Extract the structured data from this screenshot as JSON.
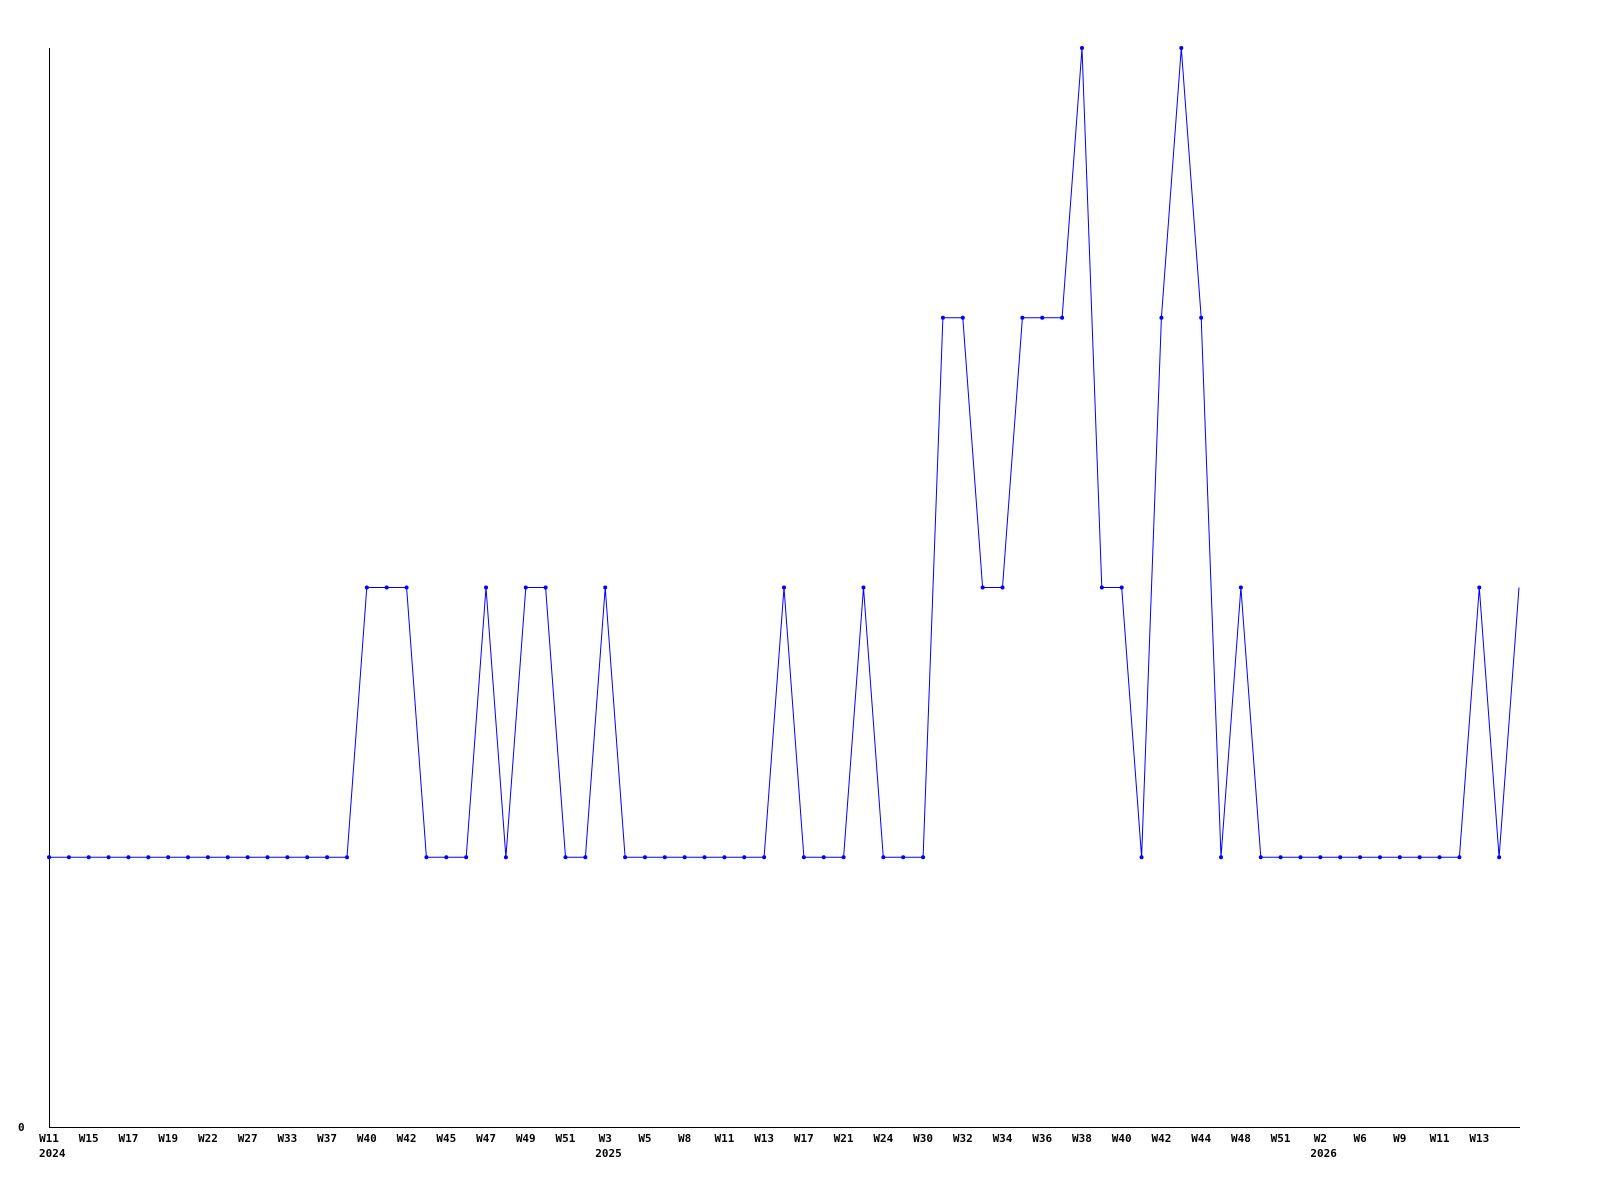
{
  "chart_data": {
    "type": "line",
    "title": "",
    "xlabel": "",
    "ylabel": "",
    "ylim": [
      0,
      4
    ],
    "y_tick_labels": [
      "0"
    ],
    "grid": false,
    "line_color": "#0000ff",
    "values": [
      1,
      1,
      1,
      1,
      1,
      1,
      1,
      1,
      1,
      1,
      1,
      1,
      1,
      1,
      1,
      1,
      2,
      2,
      2,
      1,
      1,
      1,
      2,
      1,
      2,
      2,
      1,
      1,
      2,
      1,
      1,
      1,
      1,
      1,
      1,
      1,
      1,
      2,
      1,
      1,
      1,
      2,
      1,
      1,
      1,
      3,
      3,
      2,
      2,
      3,
      3,
      3,
      4,
      2,
      2,
      1,
      3,
      4,
      3,
      1,
      2,
      1,
      1,
      1,
      1,
      1,
      1,
      1,
      1,
      1,
      1,
      1,
      2,
      1,
      2
    ],
    "x_tick_labels": [
      "W11",
      "W15",
      "W17",
      "W19",
      "W22",
      "W27",
      "W33",
      "W37",
      "W40",
      "W42",
      "W45",
      "W47",
      "W49",
      "W51",
      "W3",
      "W5",
      "W8",
      "W11",
      "W13",
      "W17",
      "W21",
      "W24",
      "W30",
      "W32",
      "W34",
      "W36",
      "W38",
      "W40",
      "W42",
      "W44",
      "W48",
      "W51",
      "W2",
      "W6",
      "W9",
      "W11",
      "W13"
    ],
    "year_labels": [
      {
        "label": "2024",
        "at_tick": 0
      },
      {
        "label": "2025",
        "at_tick": 14
      },
      {
        "label": "2026",
        "at_tick": 32
      }
    ]
  }
}
